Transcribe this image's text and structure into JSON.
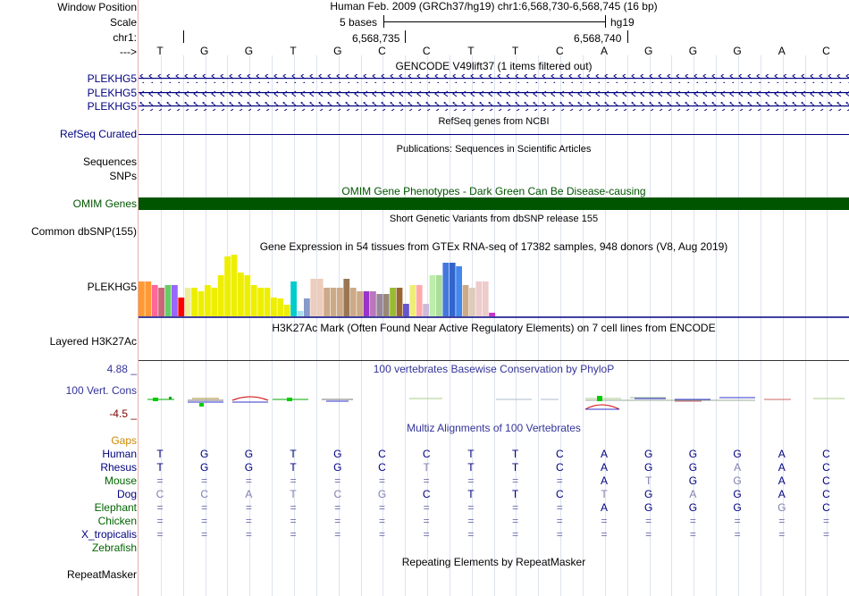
{
  "header": {
    "window_position_label": "Window Position",
    "scale_label": "Scale",
    "chrom_label": "chr1:",
    "strand_label": "--->",
    "assembly_text": "Human Feb. 2009 (GRCh37/hg19)   chr1:6,568,730-6,568,745 (16 bp)",
    "scale_text": "5 bases",
    "scale_db": "hg19",
    "pos_left": "6,568,735",
    "pos_right": "6,568,740"
  },
  "bases": [
    "T",
    "G",
    "G",
    "T",
    "G",
    "C",
    "C",
    "T",
    "T",
    "C",
    "A",
    "G",
    "G",
    "G",
    "A",
    "C"
  ],
  "tracks": {
    "gencode": {
      "title": "GENCODE V49lift37 (1 items filtered out)",
      "items": [
        "PLEKHG5",
        "PLEKHG5",
        "PLEKHG5"
      ]
    },
    "refseq": {
      "title": "RefSeq genes from NCBI",
      "label": "RefSeq Curated"
    },
    "publications": {
      "title": "Publications: Sequences in Scientific Articles",
      "labels": [
        "Sequences",
        "SNPs"
      ]
    },
    "omim": {
      "title": "OMIM Gene Phenotypes - Dark Green Can Be Disease-causing",
      "label": "OMIM Genes",
      "color": "#005500"
    },
    "dbsnp": {
      "title": "Short Genetic Variants from dbSNP release 155",
      "label": "Common dbSNP(155)"
    },
    "gtex": {
      "title": "Gene Expression in 54 tissues from GTEx RNA-seq of 17382 samples, 948 donors (V8, Aug 2019)",
      "label": "PLEKHG5",
      "tissues": [
        {
          "value": 0.55,
          "color": "#ff9933"
        },
        {
          "value": 0.55,
          "color": "#ff9933"
        },
        {
          "value": 0.5,
          "color": "#ff6699"
        },
        {
          "value": 0.45,
          "color": "#cc6677"
        },
        {
          "value": 0.5,
          "color": "#66cc66"
        },
        {
          "value": 0.5,
          "color": "#9966ff"
        },
        {
          "value": 0.3,
          "color": "#ff0000"
        },
        {
          "value": 0.45,
          "color": "#eeee99"
        },
        {
          "value": 0.45,
          "color": "#eeee00"
        },
        {
          "value": 0.4,
          "color": "#eeee00"
        },
        {
          "value": 0.5,
          "color": "#eeee00"
        },
        {
          "value": 0.45,
          "color": "#eeee00"
        },
        {
          "value": 0.65,
          "color": "#eeee00"
        },
        {
          "value": 0.95,
          "color": "#eeee00"
        },
        {
          "value": 0.98,
          "color": "#eeee00"
        },
        {
          "value": 0.7,
          "color": "#eeee00"
        },
        {
          "value": 0.65,
          "color": "#eeee00"
        },
        {
          "value": 0.5,
          "color": "#eeee00"
        },
        {
          "value": 0.45,
          "color": "#eeee00"
        },
        {
          "value": 0.45,
          "color": "#eeee00"
        },
        {
          "value": 0.3,
          "color": "#eeee00"
        },
        {
          "value": 0.28,
          "color": "#eeee00"
        },
        {
          "value": 0.18,
          "color": "#eeee00"
        },
        {
          "value": 0.55,
          "color": "#00cccc"
        },
        {
          "value": 0.08,
          "color": "#aaddee"
        },
        {
          "value": 0.28,
          "color": "#8899cc"
        },
        {
          "value": 0.6,
          "color": "#eeccbb"
        },
        {
          "value": 0.6,
          "color": "#eeccbb"
        },
        {
          "value": 0.45,
          "color": "#ccaa88"
        },
        {
          "value": 0.45,
          "color": "#ccaa88"
        },
        {
          "value": 0.45,
          "color": "#ccaa88"
        },
        {
          "value": 0.6,
          "color": "#997755"
        },
        {
          "value": 0.45,
          "color": "#ccaa88"
        },
        {
          "value": 0.4,
          "color": "#ccaa88"
        },
        {
          "value": 0.4,
          "color": "#9933cc"
        },
        {
          "value": 0.4,
          "color": "#bb77bb"
        },
        {
          "value": 0.35,
          "color": "#998899"
        },
        {
          "value": 0.35,
          "color": "#998877"
        },
        {
          "value": 0.45,
          "color": "#99bb33"
        },
        {
          "value": 0.45,
          "color": "#996633"
        },
        {
          "value": 0.2,
          "color": "#6655cc"
        },
        {
          "value": 0.5,
          "color": "#eeee77"
        },
        {
          "value": 0.5,
          "color": "#ffaaaa"
        },
        {
          "value": 0.2,
          "color": "#ccbbdd"
        },
        {
          "value": 0.65,
          "color": "#bbeeaa"
        },
        {
          "value": 0.65,
          "color": "#aadd99"
        },
        {
          "value": 0.85,
          "color": "#4477dd"
        },
        {
          "value": 0.85,
          "color": "#3366cc"
        },
        {
          "value": 0.8,
          "color": "#4488ee"
        },
        {
          "value": 0.5,
          "color": "#ccaa88"
        },
        {
          "value": 0.45,
          "color": "#ddccbb"
        },
        {
          "value": 0.55,
          "color": "#eecccc"
        },
        {
          "value": 0.55,
          "color": "#eecccc"
        },
        {
          "value": 0.05,
          "color": "#cc33cc"
        }
      ]
    },
    "h3k27ac": {
      "title": "H3K27Ac Mark (Often Found Near Active Regulatory Elements) on 7 cell lines from ENCODE",
      "label": "Layered H3K27Ac"
    },
    "phylop": {
      "title": "100 vertebrates Basewise Conservation by PhyloP",
      "label": "100 Vert. Cons",
      "ymax": "4.88 _",
      "ymin": "-4.5 _"
    },
    "multiz": {
      "title": "Multiz Alignments of 100 Vertebrates",
      "gaps_label": "Gaps",
      "species": [
        {
          "name": "Human",
          "color": "#000080",
          "bases": "TGGTGCCTTCAGGGAC",
          "dim": ""
        },
        {
          "name": "Rhesus",
          "color": "#000080",
          "bases": "TGGTGCTTTCAGGAAC",
          "dim": "0000001000000100"
        },
        {
          "name": "Mouse",
          "color": "#006400",
          "bases": "==========ATGGAC",
          "dim": "0000000000010100"
        },
        {
          "name": "Dog",
          "color": "#000080",
          "bases": "CCATCGCTTCTGAGAC",
          "dim": "1111110000101000"
        },
        {
          "name": "Elephant",
          "color": "#006400",
          "bases": "==========AGGGGC",
          "dim": "0000000000000010"
        },
        {
          "name": "Chicken",
          "color": "#006400",
          "bases": "================",
          "dim": ""
        },
        {
          "name": "X_tropicalis",
          "color": "#000080",
          "bases": "================",
          "dim": ""
        },
        {
          "name": "Zebrafish",
          "color": "#006400",
          "bases": "",
          "dim": ""
        }
      ]
    },
    "repeatmasker": {
      "title": "Repeating Elements by RepeatMasker",
      "label": "RepeatMasker"
    }
  }
}
